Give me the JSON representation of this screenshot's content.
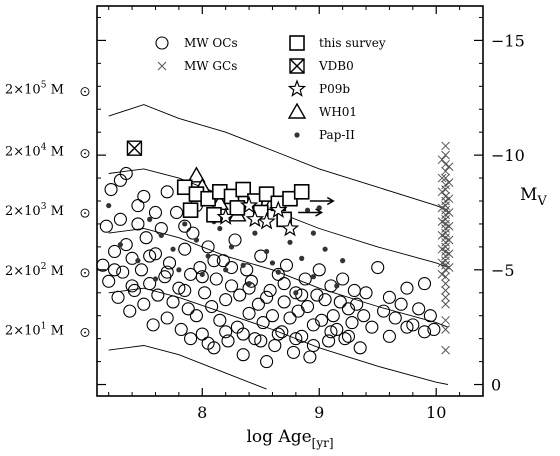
{
  "chart_data": {
    "type": "scatter",
    "xlabel": "log Age",
    "xlabel_sub": "[yr]",
    "ylabel_right": "M",
    "ylabel_right_sub": "V",
    "xlim": [
      7.1,
      10.4
    ],
    "ylim": [
      0.5,
      -16.5
    ],
    "x_ticks": [
      {
        "value": 8,
        "label": "8"
      },
      {
        "value": 9,
        "label": "9"
      },
      {
        "value": 10,
        "label": "10"
      }
    ],
    "y_ticks": [
      {
        "value": 0,
        "label": "0"
      },
      {
        "value": -5,
        "label": "−5"
      },
      {
        "value": -10,
        "label": "−10"
      },
      {
        "value": -15,
        "label": "−15"
      }
    ],
    "mass_labels": [
      {
        "coef": "2×10",
        "exp": "5",
        "unit": "M",
        "mv": -12.9
      },
      {
        "coef": "2×10",
        "exp": "4",
        "unit": "M",
        "mv": -10.2
      },
      {
        "coef": "2×10",
        "exp": "3",
        "unit": "M",
        "mv": -7.6
      },
      {
        "coef": "2×10",
        "exp": "2",
        "unit": "M",
        "mv": -5.0
      },
      {
        "coef": "2×10",
        "exp": "1",
        "unit": "M",
        "mv": -2.4
      }
    ],
    "legend": [
      {
        "label": "MW OCs",
        "marker": "circle"
      },
      {
        "label": "MW GCs",
        "marker": "cross"
      },
      {
        "label": "this survey",
        "marker": "square"
      },
      {
        "label": "VDB0",
        "marker": "square-cross"
      },
      {
        "label": "P09b",
        "marker": "star"
      },
      {
        "label": "WH01",
        "marker": "triangle"
      },
      {
        "label": "Pap-II",
        "marker": "dot"
      }
    ],
    "mass_tracks": [
      [
        [
          7.2,
          -11.7
        ],
        [
          7.5,
          -12.2
        ],
        [
          7.8,
          -11.6
        ],
        [
          8.2,
          -11.0
        ],
        [
          8.6,
          -10.2
        ],
        [
          9.0,
          -9.4
        ],
        [
          9.5,
          -8.6
        ],
        [
          10.0,
          -7.8
        ],
        [
          10.1,
          -7.6
        ]
      ],
      [
        [
          7.2,
          -9.2
        ],
        [
          7.5,
          -9.4
        ],
        [
          7.8,
          -9.0
        ],
        [
          8.2,
          -8.2
        ],
        [
          8.6,
          -7.6
        ],
        [
          9.0,
          -6.8
        ],
        [
          9.5,
          -6.0
        ],
        [
          10.0,
          -5.3
        ],
        [
          10.1,
          -5.1
        ]
      ],
      [
        [
          7.2,
          -6.6
        ],
        [
          7.5,
          -6.8
        ],
        [
          7.8,
          -6.4
        ],
        [
          8.2,
          -5.6
        ],
        [
          8.6,
          -5.0
        ],
        [
          9.0,
          -4.2
        ],
        [
          9.5,
          -3.4
        ],
        [
          10.0,
          -2.7
        ],
        [
          10.1,
          -2.5
        ]
      ],
      [
        [
          7.2,
          -4.0
        ],
        [
          7.5,
          -4.2
        ],
        [
          7.8,
          -3.8
        ],
        [
          8.2,
          -3.1
        ],
        [
          8.6,
          -2.4
        ],
        [
          9.0,
          -1.6
        ],
        [
          9.5,
          -0.8
        ],
        [
          10.0,
          -0.1
        ],
        [
          10.1,
          0.0
        ]
      ],
      [
        [
          7.2,
          -1.5
        ],
        [
          7.5,
          -1.7
        ],
        [
          7.8,
          -1.3
        ],
        [
          8.2,
          -0.5
        ],
        [
          8.5,
          0.1
        ],
        [
          8.55,
          0.2
        ]
      ]
    ],
    "mw_ocs": [
      [
        7.15,
        -5.2
      ],
      [
        7.18,
        -6.9
      ],
      [
        7.2,
        -4.5
      ],
      [
        7.22,
        -8.5
      ],
      [
        7.25,
        -5.8
      ],
      [
        7.28,
        -3.8
      ],
      [
        7.3,
        -7.2
      ],
      [
        7.32,
        -4.9
      ],
      [
        7.35,
        -6.1
      ],
      [
        7.38,
        -3.2
      ],
      [
        7.4,
        -5.5
      ],
      [
        7.42,
        -4.1
      ],
      [
        7.45,
        -7.8
      ],
      [
        7.48,
        -5.0
      ],
      [
        7.5,
        -3.5
      ],
      [
        7.52,
        -6.4
      ],
      [
        7.55,
        -4.4
      ],
      [
        7.58,
        -2.6
      ],
      [
        7.6,
        -5.7
      ],
      [
        7.62,
        -3.9
      ],
      [
        7.65,
        -6.8
      ],
      [
        7.68,
        -4.7
      ],
      [
        7.7,
        -2.9
      ],
      [
        7.72,
        -5.3
      ],
      [
        7.75,
        -3.6
      ],
      [
        7.78,
        -7.5
      ],
      [
        7.8,
        -4.2
      ],
      [
        7.82,
        -2.4
      ],
      [
        7.85,
        -5.9
      ],
      [
        7.88,
        -3.3
      ],
      [
        7.9,
        -4.8
      ],
      [
        7.92,
        -6.6
      ],
      [
        7.95,
        -3.0
      ],
      [
        7.98,
        -5.1
      ],
      [
        8.0,
        -2.2
      ],
      [
        8.02,
        -4.0
      ],
      [
        8.05,
        -6.0
      ],
      [
        8.08,
        -3.4
      ],
      [
        8.1,
        -1.6
      ],
      [
        8.12,
        -4.6
      ],
      [
        8.15,
        -2.8
      ],
      [
        8.18,
        -5.4
      ],
      [
        8.2,
        -3.7
      ],
      [
        8.22,
        -1.9
      ],
      [
        8.25,
        -4.3
      ],
      [
        8.28,
        -6.3
      ],
      [
        8.3,
        -2.5
      ],
      [
        8.32,
        -3.9
      ],
      [
        8.35,
        -1.3
      ],
      [
        8.38,
        -5.0
      ],
      [
        8.4,
        -3.1
      ],
      [
        8.42,
        -4.5
      ],
      [
        8.45,
        -2.0
      ],
      [
        8.48,
        -3.5
      ],
      [
        8.5,
        -5.6
      ],
      [
        8.52,
        -2.7
      ],
      [
        8.55,
        -1.0
      ],
      [
        8.58,
        -4.1
      ],
      [
        8.6,
        -3.0
      ],
      [
        8.62,
        -1.7
      ],
      [
        8.65,
        -4.8
      ],
      [
        8.68,
        -2.3
      ],
      [
        8.7,
        -3.6
      ],
      [
        8.72,
        -5.2
      ],
      [
        8.75,
        -2.9
      ],
      [
        8.78,
        -1.4
      ],
      [
        8.8,
        -4.0
      ],
      [
        8.82,
        -3.2
      ],
      [
        8.85,
        -2.1
      ],
      [
        8.88,
        -4.6
      ],
      [
        8.9,
        -3.4
      ],
      [
        8.92,
        -1.2
      ],
      [
        8.95,
        -2.6
      ],
      [
        8.98,
        -3.9
      ],
      [
        9.0,
        -5.0
      ],
      [
        9.02,
        -2.8
      ],
      [
        9.05,
        -3.7
      ],
      [
        9.08,
        -1.9
      ],
      [
        9.1,
        -4.3
      ],
      [
        9.12,
        -3.0
      ],
      [
        9.15,
        -2.4
      ],
      [
        9.18,
        -3.6
      ],
      [
        9.2,
        -4.6
      ],
      [
        9.22,
        -2.0
      ],
      [
        9.25,
        -3.3
      ],
      [
        9.28,
        -2.7
      ],
      [
        9.3,
        -4.1
      ],
      [
        9.32,
        -3.5
      ],
      [
        9.35,
        -1.6
      ],
      [
        9.38,
        -3.0
      ],
      [
        9.4,
        -4.0
      ],
      [
        9.45,
        -2.5
      ],
      [
        9.5,
        -5.1
      ],
      [
        9.55,
        -3.2
      ],
      [
        9.6,
        -3.8
      ],
      [
        9.65,
        -2.9
      ],
      [
        9.7,
        -3.5
      ],
      [
        9.75,
        -4.2
      ],
      [
        9.8,
        -2.6
      ],
      [
        9.85,
        -3.3
      ],
      [
        9.9,
        -4.4
      ],
      [
        9.95,
        -3.0
      ],
      [
        9.98,
        -2.4
      ],
      [
        7.3,
        -8.9
      ],
      [
        7.5,
        -8.2
      ],
      [
        7.7,
        -8.4
      ],
      [
        7.45,
        -7.0
      ],
      [
        7.6,
        -7.5
      ],
      [
        7.35,
        -9.2
      ],
      [
        7.85,
        -6.9
      ],
      [
        7.95,
        -7.8
      ],
      [
        7.25,
        -5.0
      ],
      [
        7.4,
        -4.3
      ],
      [
        7.55,
        -5.6
      ],
      [
        7.7,
        -4.9
      ],
      [
        7.85,
        -4.1
      ],
      [
        8.0,
        -4.7
      ],
      [
        8.1,
        -5.4
      ],
      [
        8.25,
        -5.1
      ],
      [
        8.4,
        -4.2
      ],
      [
        8.55,
        -3.8
      ],
      [
        8.7,
        -4.4
      ],
      [
        8.85,
        -3.9
      ],
      [
        7.9,
        -2.0
      ],
      [
        8.05,
        -1.8
      ],
      [
        8.2,
        -2.3
      ],
      [
        8.35,
        -2.2
      ],
      [
        8.5,
        -1.9
      ],
      [
        8.65,
        -2.2
      ],
      [
        8.8,
        -2.0
      ],
      [
        8.95,
        -1.7
      ],
      [
        9.1,
        -2.3
      ],
      [
        9.25,
        -2.1
      ],
      [
        9.6,
        -2.1
      ],
      [
        9.75,
        -2.5
      ],
      [
        9.9,
        -2.3
      ]
    ],
    "mw_gcs": [
      [
        10.08,
        -10.4
      ],
      [
        10.08,
        -10.0
      ],
      [
        10.08,
        -9.6
      ],
      [
        10.08,
        -9.3
      ],
      [
        10.08,
        -9.0
      ],
      [
        10.08,
        -8.7
      ],
      [
        10.08,
        -8.5
      ],
      [
        10.08,
        -8.2
      ],
      [
        10.08,
        -8.0
      ],
      [
        10.08,
        -7.8
      ],
      [
        10.08,
        -7.6
      ],
      [
        10.08,
        -7.4
      ],
      [
        10.08,
        -7.2
      ],
      [
        10.08,
        -7.0
      ],
      [
        10.08,
        -6.8
      ],
      [
        10.08,
        -6.6
      ],
      [
        10.08,
        -6.4
      ],
      [
        10.08,
        -6.2
      ],
      [
        10.08,
        -6.0
      ],
      [
        10.08,
        -5.8
      ],
      [
        10.08,
        -5.6
      ],
      [
        10.08,
        -5.4
      ],
      [
        10.08,
        -5.2
      ],
      [
        10.08,
        -5.0
      ],
      [
        10.08,
        -4.7
      ],
      [
        10.08,
        -4.4
      ],
      [
        10.08,
        -4.1
      ],
      [
        10.08,
        -3.8
      ],
      [
        10.08,
        -3.5
      ],
      [
        10.08,
        -2.8
      ],
      [
        10.08,
        -2.4
      ],
      [
        10.08,
        -1.5
      ],
      [
        10.05,
        -9.8
      ],
      [
        10.05,
        -9.0
      ],
      [
        10.05,
        -8.4
      ],
      [
        10.05,
        -7.7
      ],
      [
        10.05,
        -7.1
      ],
      [
        10.05,
        -6.5
      ],
      [
        10.05,
        -5.9
      ],
      [
        10.05,
        -5.3
      ],
      [
        10.05,
        -4.8
      ],
      [
        10.11,
        -9.5
      ],
      [
        10.11,
        -8.8
      ],
      [
        10.11,
        -8.1
      ],
      [
        10.11,
        -7.5
      ],
      [
        10.11,
        -6.9
      ],
      [
        10.11,
        -6.3
      ],
      [
        10.11,
        -5.7
      ],
      [
        10.11,
        -5.1
      ]
    ],
    "this_survey": [
      [
        7.85,
        -8.6
      ],
      [
        7.95,
        -8.3
      ],
      [
        8.05,
        -8.1
      ],
      [
        8.15,
        -8.4
      ],
      [
        8.25,
        -8.2
      ],
      [
        8.35,
        -8.5
      ],
      [
        8.45,
        -8.0
      ],
      [
        8.55,
        -8.3
      ],
      [
        8.65,
        -7.9
      ],
      [
        8.75,
        -8.1
      ],
      [
        8.85,
        -8.4
      ],
      [
        7.9,
        -7.6
      ],
      [
        8.1,
        -7.4
      ],
      [
        8.3,
        -7.7
      ],
      [
        8.5,
        -7.5
      ],
      [
        8.7,
        -7.2
      ]
    ],
    "vdb0": [
      [
        7.42,
        -10.3
      ]
    ],
    "p09b": [
      [
        8.2,
        -7.3
      ],
      [
        8.4,
        -7.8
      ],
      [
        8.55,
        -7.1
      ],
      [
        8.65,
        -7.6
      ],
      [
        8.75,
        -6.8
      ],
      [
        8.45,
        -7.2
      ]
    ],
    "wh01": [
      [
        7.95,
        -9.1
      ],
      [
        8.15,
        -7.9
      ],
      [
        8.3,
        -7.4
      ],
      [
        8.0,
        -8.6
      ],
      [
        8.6,
        -7.9
      ]
    ],
    "pap_ii": [
      [
        7.2,
        -7.8
      ],
      [
        7.3,
        -6.1
      ],
      [
        7.45,
        -5.4
      ],
      [
        7.55,
        -7.2
      ],
      [
        7.65,
        -6.5
      ],
      [
        7.75,
        -5.9
      ],
      [
        7.85,
        -7.0
      ],
      [
        7.95,
        -6.3
      ],
      [
        8.05,
        -5.6
      ],
      [
        8.15,
        -6.8
      ],
      [
        8.25,
        -6.0
      ],
      [
        8.35,
        -5.2
      ],
      [
        8.45,
        -6.6
      ],
      [
        8.55,
        -5.8
      ],
      [
        8.65,
        -4.9
      ],
      [
        8.75,
        -6.2
      ],
      [
        8.85,
        -5.5
      ],
      [
        8.95,
        -4.7
      ],
      [
        9.05,
        -5.9
      ],
      [
        9.15,
        -4.3
      ],
      [
        8.0,
        -4.8
      ],
      [
        8.2,
        -5.0
      ],
      [
        8.4,
        -4.4
      ],
      [
        8.6,
        -5.3
      ],
      [
        8.8,
        -4.0
      ],
      [
        7.9,
        -7.7
      ],
      [
        8.1,
        -7.1
      ],
      [
        8.3,
        -7.9
      ],
      [
        8.5,
        -8.0
      ],
      [
        8.7,
        -7.4
      ],
      [
        8.9,
        -7.6
      ],
      [
        9.0,
        -7.7
      ],
      [
        7.6,
        -4.6
      ],
      [
        7.8,
        -5.0
      ],
      [
        9.2,
        -5.4
      ],
      [
        8.95,
        -6.6
      ]
    ],
    "arrows": [
      [
        8.92,
        -8.0,
        9.12,
        -8.0
      ],
      [
        8.82,
        -7.5,
        9.02,
        -7.5
      ]
    ]
  }
}
